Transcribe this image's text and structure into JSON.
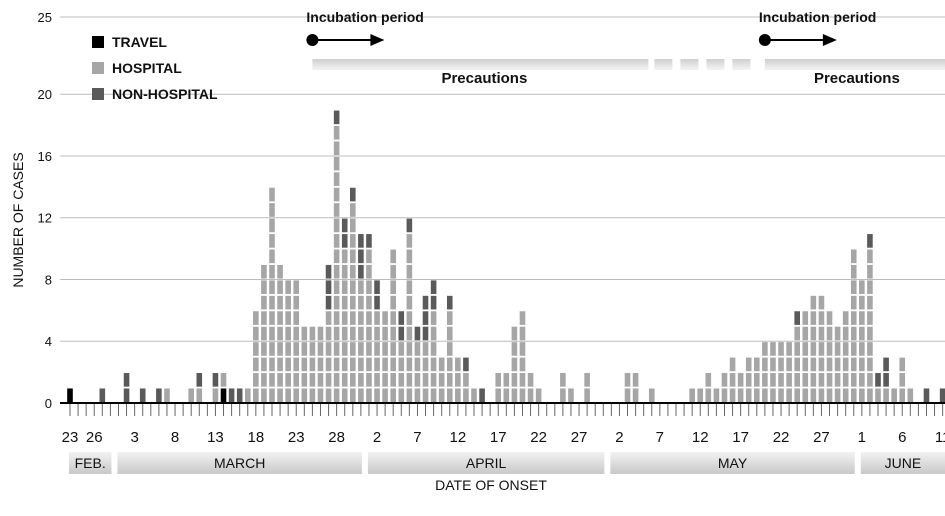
{
  "chart_data": {
    "type": "bar",
    "stacked": true,
    "xlabel": "DATE OF ONSET",
    "ylabel": "NUMBER OF CASES",
    "ylim": [
      0,
      25
    ],
    "y_ticks": [
      0,
      4,
      8,
      12,
      16,
      20,
      25
    ],
    "grid": true,
    "legend_position": "top-left",
    "x_start": "2003-02-23",
    "x_end": "2003-06-12",
    "x_tick_labels": [
      {
        "date": "2003-02-23",
        "label": "23"
      },
      {
        "date": "2003-02-26",
        "label": "26"
      },
      {
        "date": "2003-03-03",
        "label": "3"
      },
      {
        "date": "2003-03-08",
        "label": "8"
      },
      {
        "date": "2003-03-13",
        "label": "13"
      },
      {
        "date": "2003-03-18",
        "label": "18"
      },
      {
        "date": "2003-03-23",
        "label": "23"
      },
      {
        "date": "2003-03-28",
        "label": "28"
      },
      {
        "date": "2003-04-02",
        "label": "2"
      },
      {
        "date": "2003-04-07",
        "label": "7"
      },
      {
        "date": "2003-04-12",
        "label": "12"
      },
      {
        "date": "2003-04-17",
        "label": "17"
      },
      {
        "date": "2003-04-22",
        "label": "22"
      },
      {
        "date": "2003-04-27",
        "label": "27"
      },
      {
        "date": "2003-05-02",
        "label": "2"
      },
      {
        "date": "2003-05-07",
        "label": "7"
      },
      {
        "date": "2003-05-12",
        "label": "12"
      },
      {
        "date": "2003-05-17",
        "label": "17"
      },
      {
        "date": "2003-05-22",
        "label": "22"
      },
      {
        "date": "2003-05-27",
        "label": "27"
      },
      {
        "date": "2003-06-01",
        "label": "1"
      },
      {
        "date": "2003-06-06",
        "label": "6"
      },
      {
        "date": "2003-06-11",
        "label": "11"
      }
    ],
    "months": [
      {
        "label": "FEB.",
        "start": "2003-02-23",
        "end": "2003-02-28"
      },
      {
        "label": "MARCH",
        "start": "2003-03-01",
        "end": "2003-03-31"
      },
      {
        "label": "APRIL",
        "start": "2003-04-01",
        "end": "2003-04-30"
      },
      {
        "label": "MAY",
        "start": "2003-05-01",
        "end": "2003-05-31"
      },
      {
        "label": "JUNE",
        "start": "2003-06-01",
        "end": "2003-06-12"
      }
    ],
    "series": [
      {
        "name": "TRAVEL",
        "color": "#000000",
        "values": [
          1,
          0,
          0,
          0,
          0,
          0,
          0,
          0,
          0,
          0,
          0,
          0,
          0,
          0,
          0,
          0,
          0,
          0,
          0,
          1,
          0,
          0,
          0,
          0,
          0,
          0,
          0,
          0,
          0,
          0,
          0,
          0,
          0,
          0,
          0,
          0,
          0,
          0,
          0,
          0,
          0,
          0,
          0,
          0,
          0,
          0,
          0,
          0,
          0,
          0,
          0,
          0,
          0,
          0,
          0,
          0,
          0,
          0,
          0,
          0,
          0,
          0,
          0,
          0,
          0,
          0,
          0,
          0,
          0,
          0,
          0,
          0,
          0,
          0,
          0,
          0,
          0,
          0,
          0,
          0,
          0,
          0,
          0,
          0,
          0,
          0,
          0,
          0,
          0,
          0,
          0,
          0,
          0,
          0,
          0,
          0,
          0,
          0,
          0,
          0,
          0,
          0,
          0,
          0,
          0,
          0,
          0,
          0,
          0,
          0,
          0
        ]
      },
      {
        "name": "HOSPITAL",
        "color": "#a6a6a6",
        "values": [
          0,
          0,
          0,
          0,
          0,
          0,
          0,
          0,
          0,
          0,
          0,
          0,
          1,
          0,
          0,
          1,
          1,
          0,
          1,
          1,
          0,
          0,
          1,
          6,
          9,
          14,
          9,
          8,
          8,
          5,
          5,
          5,
          6,
          18,
          10,
          13,
          8,
          10,
          6,
          6,
          10,
          4,
          11,
          4,
          4,
          6,
          3,
          6,
          3,
          2,
          1,
          0,
          0,
          2,
          2,
          5,
          6,
          2,
          1,
          0,
          0,
          2,
          1,
          0,
          2,
          0,
          0,
          0,
          0,
          2,
          2,
          0,
          1,
          0,
          0,
          0,
          0,
          1,
          1,
          2,
          1,
          2,
          3,
          2,
          3,
          3,
          4,
          4,
          4,
          4,
          5,
          6,
          7,
          7,
          6,
          5,
          6,
          10,
          8,
          10,
          1,
          1,
          1,
          3,
          1,
          0,
          0,
          0,
          0,
          1,
          0
        ]
      },
      {
        "name": "NON-HOSPITAL",
        "color": "#5a5a5a",
        "values": [
          0,
          0,
          0,
          0,
          1,
          0,
          0,
          2,
          0,
          1,
          0,
          1,
          0,
          0,
          0,
          0,
          1,
          0,
          1,
          0,
          1,
          1,
          0,
          0,
          0,
          0,
          0,
          0,
          0,
          0,
          0,
          0,
          3,
          1,
          2,
          1,
          3,
          1,
          2,
          0,
          0,
          2,
          1,
          1,
          3,
          2,
          0,
          1,
          0,
          1,
          0,
          1,
          0,
          0,
          0,
          0,
          0,
          0,
          0,
          0,
          0,
          0,
          0,
          0,
          0,
          0,
          0,
          0,
          0,
          0,
          0,
          0,
          0,
          0,
          0,
          0,
          0,
          0,
          0,
          0,
          0,
          0,
          0,
          0,
          0,
          0,
          0,
          0,
          0,
          0,
          1,
          0,
          0,
          0,
          0,
          0,
          0,
          0,
          0,
          1,
          1,
          2,
          0,
          0,
          0,
          0,
          1,
          0,
          1,
          0,
          1
        ]
      }
    ],
    "annotations": [
      {
        "text": "Incubation period",
        "date": "2003-03-25"
      },
      {
        "text": "Incubation period",
        "date": "2003-05-20"
      },
      {
        "text": "Precautions",
        "start": "2003-03-25",
        "end": "2003-06-12"
      },
      {
        "text": "Precautions",
        "start": "2003-05-20",
        "end": "2003-06-12"
      }
    ]
  }
}
